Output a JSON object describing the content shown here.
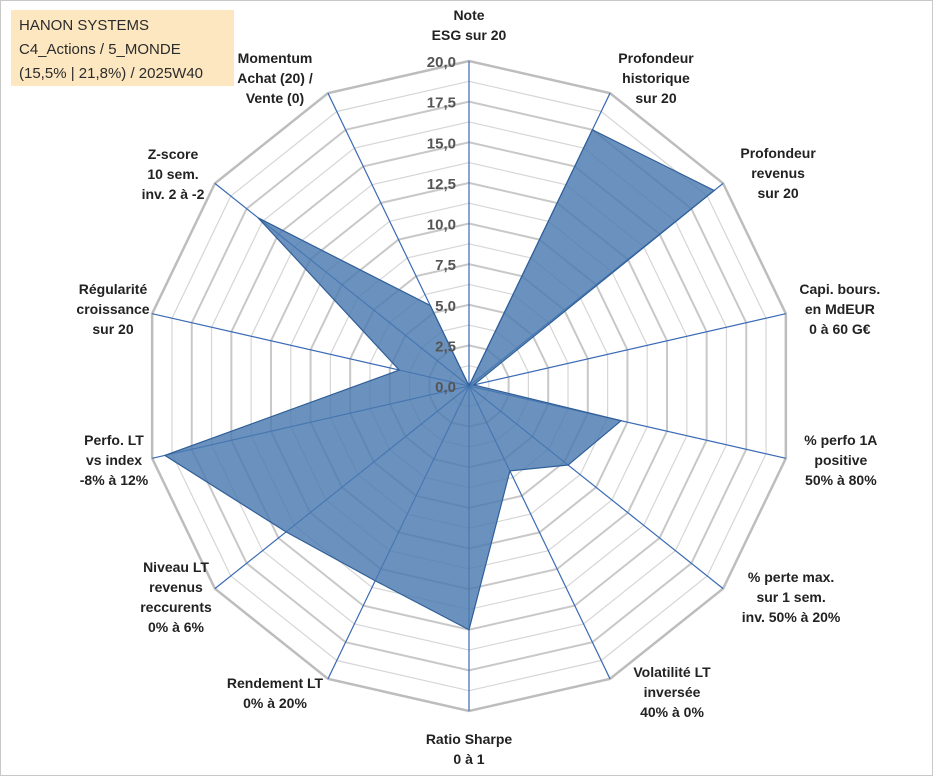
{
  "title_box": {
    "line1": "HANON SYSTEMS",
    "line2": "C4_Actions / 5_MONDE",
    "line3": "(15,5% | 21,8%) / 2025W40"
  },
  "chart_data": {
    "type": "radar",
    "title": "HANON SYSTEMS",
    "rmin": 0,
    "rmax": 20,
    "ticks": [
      "0,0",
      "2,5",
      "5,0",
      "7,5",
      "10,0",
      "12,5",
      "15,0",
      "17,5",
      "20,0"
    ],
    "tick_values": [
      0,
      2.5,
      5,
      7.5,
      10,
      12.5,
      15,
      17.5,
      20
    ],
    "grid": true,
    "axes": [
      {
        "label": [
          "Note",
          "ESG sur 20"
        ],
        "value": 0
      },
      {
        "label": [
          "Profondeur",
          "historique",
          "sur 20"
        ],
        "value": 17.5
      },
      {
        "label": [
          "Profondeur",
          "revenus",
          "sur 20"
        ],
        "value": 19.3
      },
      {
        "label": [
          "Capi. bours.",
          "en MdEUR",
          "0 à 60 G€"
        ],
        "value": 0.3
      },
      {
        "label": [
          "% perfo 1A",
          "positive",
          "50% à 80%"
        ],
        "value": 9.6
      },
      {
        "label": [
          "% perte max.",
          "sur 1 sem.",
          "inv. 50% à 20%"
        ],
        "value": 7.8
      },
      {
        "label": [
          "Volatilité LT",
          "inversée",
          "40% à 0%"
        ],
        "value": 5.8
      },
      {
        "label": [
          "Ratio Sharpe",
          "0 à 1"
        ],
        "value": 15.0
      },
      {
        "label": [
          "Rendement LT",
          "0% à 20%"
        ],
        "value": 13.3
      },
      {
        "label": [
          "Niveau LT",
          "revenus",
          "reccurents",
          "0% à 6%"
        ],
        "value": 14.4
      },
      {
        "label": [
          "Perfo. LT",
          "vs index",
          "-8% à 12%"
        ],
        "value": 19.2
      },
      {
        "label": [
          "Régularité",
          "croissance",
          "sur 20"
        ],
        "value": 4.4
      },
      {
        "label": [
          "Z-score",
          "10 sem.",
          "inv. 2 à -2"
        ],
        "value": 16.6
      },
      {
        "label": [
          "Momentum",
          "Achat (20) /",
          "Vente (0)"
        ],
        "value": 5.5
      }
    ],
    "series": [
      {
        "values": [
          0,
          17.5,
          19.3,
          0.3,
          9.6,
          7.8,
          5.8,
          15.0,
          13.3,
          14.4,
          19.2,
          4.4,
          16.6,
          5.5
        ]
      }
    ],
    "colors": {
      "fill": "#4a7ab0",
      "stroke": "#2f5f98",
      "grid": "#c0c0c0",
      "spoke": "#3a6ab5"
    }
  }
}
